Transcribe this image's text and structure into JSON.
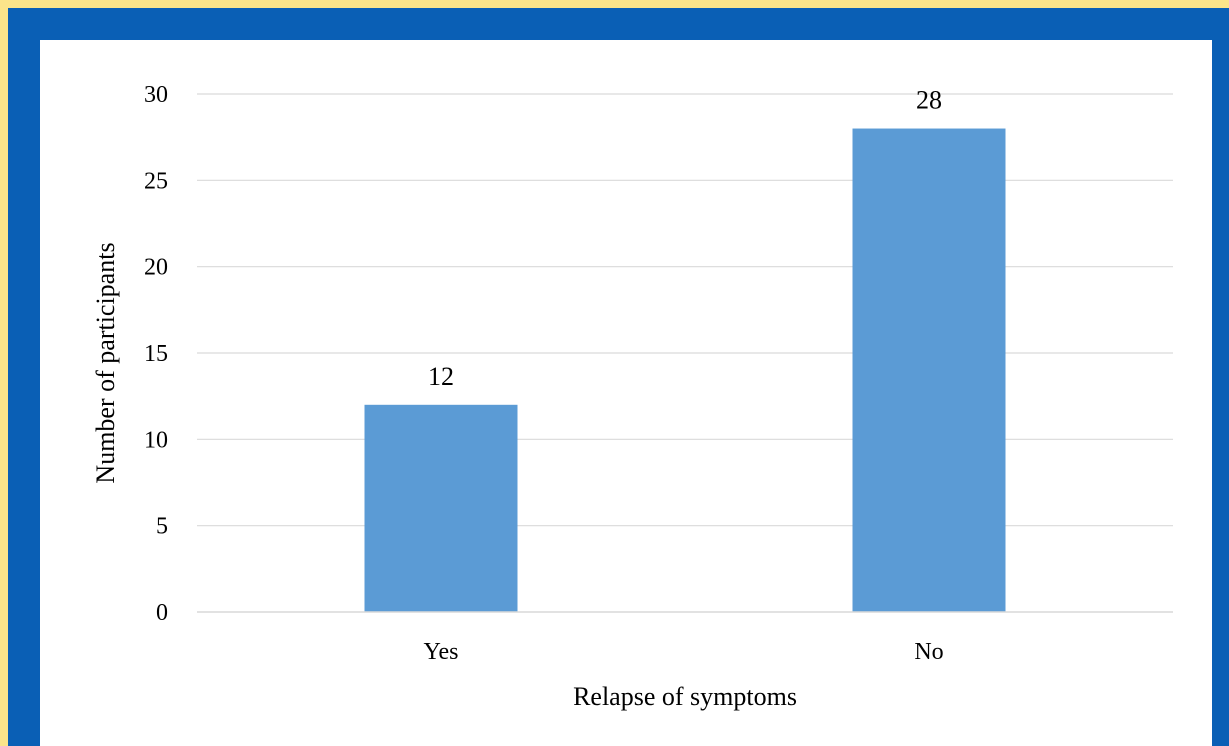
{
  "colors": {
    "border_outer": "#fbe48a",
    "border_inner": "#0a5fb5",
    "bar": "#5b9bd5",
    "gridline": "#d9d9d9"
  },
  "chart_data": {
    "type": "bar",
    "title": "",
    "xlabel": "Relapse of symptoms",
    "ylabel": "Number of participants",
    "categories": [
      "Yes",
      "No"
    ],
    "values": [
      12,
      28
    ],
    "data_labels": [
      "12",
      "28"
    ],
    "ylim": [
      0,
      30
    ],
    "yticks": [
      "0",
      "5",
      "10",
      "15",
      "20",
      "25",
      "30"
    ],
    "grid": true,
    "legend": "none"
  }
}
